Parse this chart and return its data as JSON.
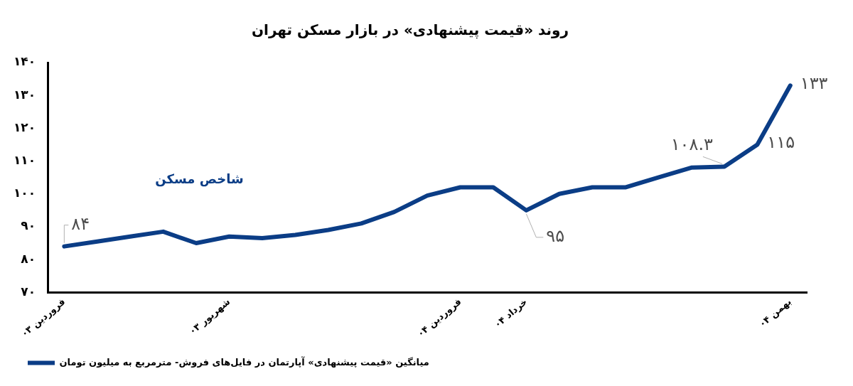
{
  "chart_data": {
    "type": "line",
    "title": "روند «قیمت پیشنهادی» در بازار مسکن تهران",
    "categories": [
      "فروردین ۰۳",
      null,
      null,
      null,
      null,
      "شهریور ۰۳",
      null,
      null,
      null,
      null,
      null,
      null,
      "فروردین ۰۴",
      null,
      "خرداد ۰۴",
      null,
      null,
      null,
      null,
      null,
      null,
      null,
      "بهمن ۰۴"
    ],
    "series": [
      {
        "name": "میانگین «قیمت پیشنهادی» آپارتمان در فایل‌های فروش- مترمربع به میلیون تومان",
        "color": "#0b3d86",
        "values": [
          84,
          85.5,
          87,
          88.5,
          85,
          87,
          86.5,
          87.5,
          89,
          91,
          94.5,
          99.5,
          102,
          102,
          95,
          100,
          102,
          102,
          105,
          108,
          108.3,
          115,
          133
        ],
        "value_labels": [
          "۸۴",
          null,
          null,
          null,
          null,
          null,
          null,
          null,
          null,
          null,
          null,
          null,
          null,
          null,
          "۹۵",
          null,
          null,
          null,
          null,
          null,
          "۱۰۸.۳",
          "۱۱۵",
          "۱۳۳"
        ]
      }
    ],
    "ylim": [
      70,
      140
    ],
    "yticks": [
      {
        "value": 70,
        "label": "۷۰"
      },
      {
        "value": 80,
        "label": "۸۰"
      },
      {
        "value": 90,
        "label": "۹۰"
      },
      {
        "value": 100,
        "label": "۱۰۰"
      },
      {
        "value": 110,
        "label": "۱۱۰"
      },
      {
        "value": 120,
        "label": "۱۲۰"
      },
      {
        "value": 130,
        "label": "۱۳۰"
      },
      {
        "value": 140,
        "label": "۱۴۰"
      }
    ],
    "annotations": [
      "شاخص مسکن"
    ],
    "grid": false,
    "legend": "bottom left",
    "marker": "none",
    "line_style": "solid"
  }
}
